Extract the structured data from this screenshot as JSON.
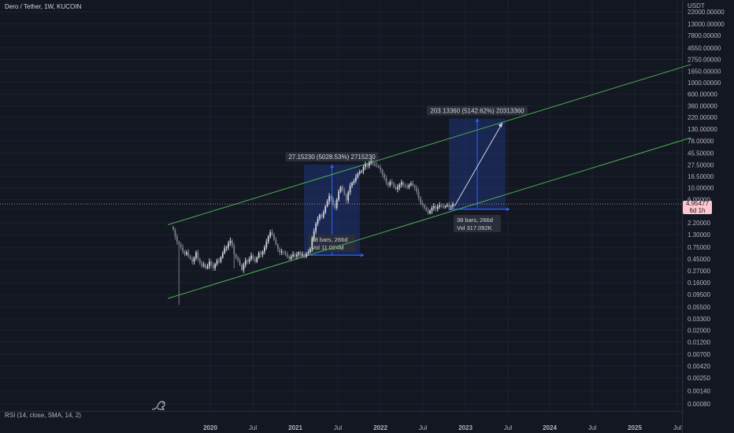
{
  "header": {
    "symbol_title": "Dero / Tether, 1W, KUCOIN",
    "currency": "USDT"
  },
  "indicator": {
    "label": "RSI (14, close, SMA, 14, 2)"
  },
  "last_price": {
    "value": "4.95477",
    "countdown": "6d 1h",
    "badge_color": "#ffc7cf"
  },
  "colors": {
    "background": "#131722",
    "grid": "#1e222d",
    "axis_text": "#b2b5be",
    "up": "#d1d4dc",
    "down": "#787b86",
    "channel": "#4caf50",
    "range_fill": "#1e3a8a",
    "range_line": "#2962ff",
    "tooltip_bg": "#2a2e39"
  },
  "chart_data": {
    "type": "candlestick",
    "title": "Dero / Tether, 1W, KUCOIN",
    "y_scale": "log",
    "y_ticks": [
      "0.00080",
      "0.00140",
      "0.00250",
      "0.00420",
      "0.00700",
      "0.01200",
      "0.02000",
      "0.03300",
      "0.05500",
      "0.09500",
      "0.16000",
      "0.27000",
      "0.45000",
      "0.75000",
      "1.30000",
      "2.20000",
      "4.00000",
      "6.00000",
      "10.00000",
      "16.50000",
      "27.50000",
      "45.50000",
      "78.00000",
      "130.00000",
      "220.00000",
      "360.00000",
      "600.00000",
      "1000.00000",
      "1650.00000",
      "2750.00000",
      "4550.00000",
      "7800.00000",
      "13000.00000",
      "22000.00000"
    ],
    "x_ticks": [
      "2020",
      "Jul",
      "2021",
      "Jul",
      "2022",
      "Jul",
      "2023",
      "Jul",
      "2024",
      "Jul",
      "2025",
      "Jul"
    ],
    "x_ticks_emphasis": [
      "2020",
      "2021",
      "2022",
      "2023",
      "2024",
      "2025"
    ],
    "ylim": [
      0.0008,
      22000
    ],
    "x_range": [
      "2019-04",
      "2025-09"
    ],
    "weekly_closes": [
      1.6,
      1.2,
      0.95,
      0.85,
      0.75,
      0.62,
      0.55,
      0.6,
      0.5,
      0.45,
      0.4,
      0.48,
      0.6,
      0.45,
      0.38,
      0.33,
      0.35,
      0.3,
      0.33,
      0.4,
      0.35,
      0.3,
      0.36,
      0.42,
      0.4,
      0.48,
      0.58,
      0.72,
      0.75,
      0.9,
      1.0,
      0.8,
      0.55,
      0.48,
      0.42,
      0.35,
      0.28,
      0.35,
      0.42,
      0.4,
      0.45,
      0.52,
      0.45,
      0.4,
      0.48,
      0.58,
      0.55,
      0.62,
      0.75,
      0.95,
      1.2,
      1.45,
      1.3,
      1.05,
      0.85,
      0.7,
      0.6,
      0.62,
      0.6,
      0.55,
      0.5,
      0.45,
      0.5,
      0.55,
      0.5,
      0.55,
      0.6,
      0.52,
      0.55,
      0.5,
      0.56,
      0.6,
      0.7,
      1.1,
      1.5,
      2.1,
      2.6,
      3.1,
      2.8,
      3.4,
      4.5,
      5.6,
      7.0,
      6.2,
      5.0,
      4.2,
      6.0,
      8.5,
      10.5,
      9.0,
      7.5,
      5.8,
      8.2,
      11.0,
      12.5,
      13.5,
      16.0,
      18.5,
      20.0,
      21.0,
      25.0,
      28.0,
      26.0,
      30.0,
      32.0,
      28.5,
      27.0,
      26.0,
      24.5,
      22.0,
      18.0,
      15.5,
      12.5,
      11.2,
      13.0,
      12.2,
      10.4,
      9.5,
      10.3,
      11.5,
      12.8,
      11.3,
      10.8,
      10.2,
      11.5,
      12.2,
      11.0,
      10.2,
      8.5,
      6.5,
      5.2,
      4.8,
      4.2,
      3.8,
      3.3,
      3.7,
      4.2,
      4.5,
      4.0,
      4.4,
      4.7,
      4.6,
      4.3,
      4.5,
      4.8,
      4.3,
      4.5,
      4.95
    ],
    "channel": {
      "upper": [
        [
          "2019-07",
          2.0
        ],
        [
          "2025-09",
          2200
        ]
      ],
      "lower": [
        [
          "2019-07",
          0.08
        ],
        [
          "2025-09",
          90
        ]
      ]
    },
    "price_ranges": [
      {
        "label": "27.15230 (5028.53%) 2715230",
        "bars": "38 bars, 266d",
        "vol": "Vol 11.024M",
        "from": 0.53,
        "to": 27.68
      },
      {
        "label": "203.13360 (5142.62%) 20313360",
        "bars": "38 bars, 266d",
        "vol": "Vol 317.092K",
        "from": 3.95,
        "to": 207.1
      }
    ],
    "current_price": 4.95477
  }
}
